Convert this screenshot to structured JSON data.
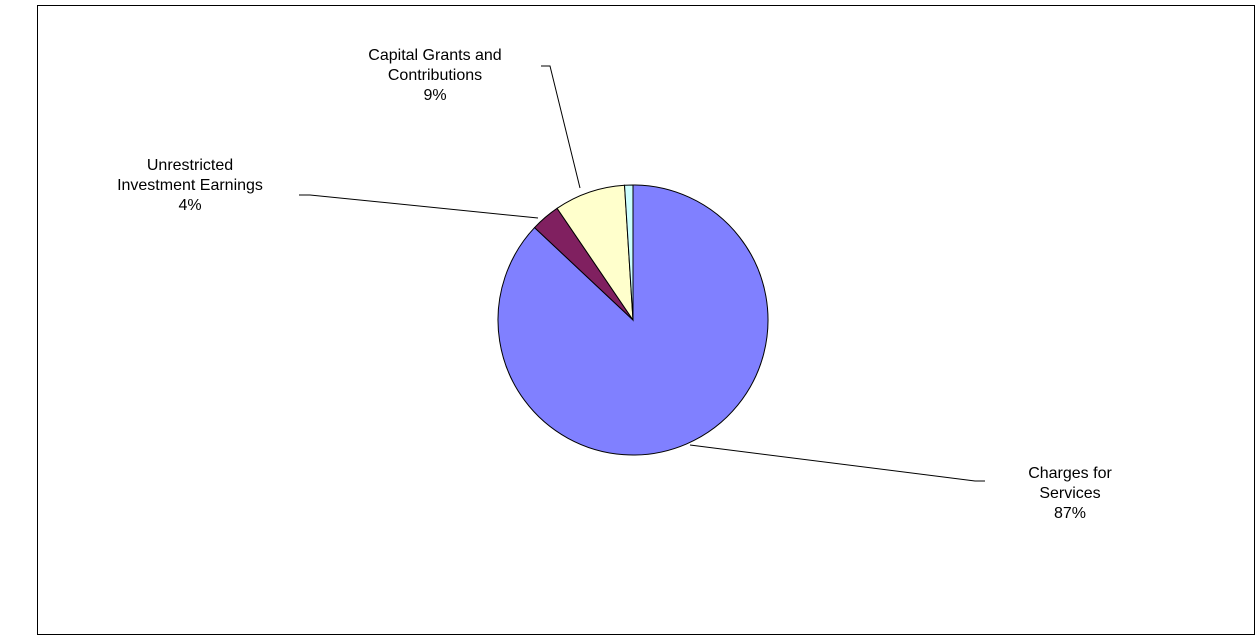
{
  "chart_data": {
    "type": "pie",
    "title": "",
    "slices": [
      {
        "label_lines": [
          "Charges for",
          "Services"
        ],
        "percent_label": "87%",
        "value": 87,
        "color": "#8080ff"
      },
      {
        "label_lines": [
          "Unrestricted",
          "Investment Earnings"
        ],
        "percent_label": "4%",
        "value": 3.5,
        "color": "#802060"
      },
      {
        "label_lines": [
          "Capital Grants and",
          "Contributions"
        ],
        "percent_label": "9%",
        "value": 8.5,
        "color": "#ffffcc"
      },
      {
        "label_lines": [],
        "percent_label": "",
        "value": 1,
        "color": "#ccffff"
      }
    ]
  }
}
